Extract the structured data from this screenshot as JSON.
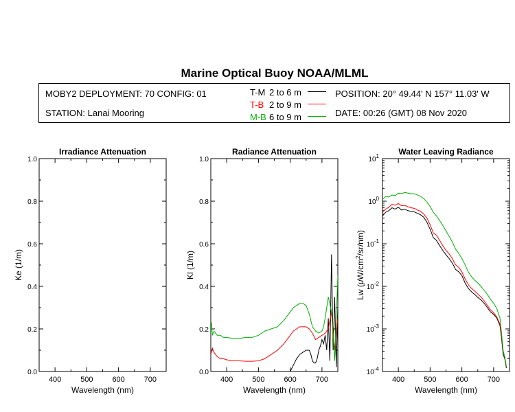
{
  "title": "Marine Optical Buoy NOAA/MLML",
  "info": {
    "deployment": "MOBY2 DEPLOYMENT: 70 CONFIG: 01",
    "station": "STATION: Lanai Mooring",
    "position": "POSITION: 20° 49.44' N   157° 11.03' W",
    "date": "DATE: 00:26 (GMT) 08 Nov 2020"
  },
  "legend": [
    {
      "code": "T-M",
      "range": "2 to 6  m",
      "color": "#000000"
    },
    {
      "code": "T-B",
      "range": "2 to 9  m",
      "color": "#ff0000"
    },
    {
      "code": "M-B",
      "range": "6 to 9  m",
      "color": "#00b000"
    }
  ],
  "chart_data": [
    {
      "type": "line",
      "title": "Irradiance Attenuation",
      "xlabel": "Wavelength (nm)",
      "ylabel": "Ke  (1/m)",
      "xlim": [
        350,
        750
      ],
      "ylim": [
        0,
        1.0
      ],
      "xticks": [
        "400",
        "500",
        "600",
        "700"
      ],
      "yticks": [
        "0.0",
        "0.2",
        "0.4",
        "0.6",
        "0.8",
        "1.0"
      ],
      "series": []
    },
    {
      "type": "line",
      "title": "Radiance Attenuation",
      "xlabel": "Wavelength (nm)",
      "ylabel": "Kl  (1/m)",
      "xlim": [
        350,
        750
      ],
      "ylim": [
        0,
        1.0
      ],
      "xticks": [
        "400",
        "500",
        "600",
        "700"
      ],
      "yticks": [
        "0.0",
        "0.2",
        "0.4",
        "0.6",
        "0.8",
        "1.0"
      ],
      "series": [
        {
          "name": "T-M",
          "color": "#000000",
          "x": [
            600,
            610,
            620,
            630,
            640,
            650,
            660,
            665,
            670,
            675,
            680,
            685,
            690,
            695,
            700,
            705,
            710,
            715,
            720,
            725,
            730,
            735,
            740,
            745,
            750
          ],
          "y": [
            0.0,
            0.03,
            0.06,
            0.08,
            0.09,
            0.1,
            0.1,
            0.08,
            0.05,
            0.04,
            0.04,
            0.06,
            0.1,
            0.12,
            0.15,
            0.13,
            0.17,
            0.1,
            0.25,
            0.05,
            0.55,
            0.1,
            0.35,
            0.02,
            0.3
          ]
        },
        {
          "name": "T-B",
          "color": "#ff0000",
          "x": [
            350,
            355,
            360,
            370,
            380,
            390,
            400,
            420,
            440,
            460,
            480,
            500,
            520,
            540,
            560,
            580,
            590,
            600,
            610,
            620,
            630,
            640,
            650,
            660,
            670,
            680,
            690,
            700,
            710,
            720,
            730,
            740,
            750
          ],
          "y": [
            0.08,
            0.11,
            0.09,
            0.07,
            0.06,
            0.06,
            0.055,
            0.05,
            0.05,
            0.048,
            0.048,
            0.05,
            0.06,
            0.08,
            0.1,
            0.13,
            0.15,
            0.17,
            0.19,
            0.2,
            0.21,
            0.21,
            0.21,
            0.2,
            0.18,
            0.15,
            0.16,
            0.17,
            0.18,
            0.2,
            0.28,
            0.1,
            0.25
          ]
        },
        {
          "name": "M-B",
          "color": "#00b000",
          "x": [
            350,
            352,
            355,
            360,
            370,
            380,
            390,
            400,
            420,
            440,
            460,
            480,
            500,
            520,
            540,
            560,
            580,
            590,
            600,
            610,
            620,
            630,
            640,
            650,
            660,
            670,
            680,
            690,
            700,
            705,
            710,
            720,
            730,
            740,
            750
          ],
          "y": [
            0.18,
            0.23,
            0.17,
            0.19,
            0.17,
            0.17,
            0.16,
            0.16,
            0.155,
            0.155,
            0.16,
            0.16,
            0.17,
            0.19,
            0.2,
            0.21,
            0.24,
            0.26,
            0.28,
            0.3,
            0.31,
            0.32,
            0.32,
            0.31,
            0.27,
            0.21,
            0.19,
            0.18,
            0.19,
            0.21,
            0.25,
            0.35,
            0.28,
            0.05,
            0.45
          ]
        }
      ]
    },
    {
      "type": "line",
      "title": "Water Leaving Radiance",
      "xlabel": "Wavelength (nm)",
      "ylabel_prefix": "Lw  (",
      "ylabel_mu": "μ",
      "ylabel_mid": "W/cm",
      "ylabel_sup": "2",
      "ylabel_suffix": "/sr/nm)",
      "xlim": [
        350,
        750
      ],
      "ylim_log10": [
        -4,
        1
      ],
      "xticks": [
        "400",
        "500",
        "600",
        "700"
      ],
      "yticks": [
        {
          "base": "10",
          "exp": "1",
          "value": 1
        },
        {
          "base": "10",
          "exp": "0",
          "value": 0
        },
        {
          "base": "10",
          "exp": "-1",
          "value": -1
        },
        {
          "base": "10",
          "exp": "-2",
          "value": -2
        },
        {
          "base": "10",
          "exp": "-3",
          "value": -3
        },
        {
          "base": "10",
          "exp": "-4",
          "value": -4
        }
      ],
      "series": [
        {
          "name": "T-M",
          "color": "#000000",
          "x": [
            350,
            360,
            370,
            380,
            390,
            400,
            410,
            420,
            430,
            440,
            450,
            460,
            470,
            480,
            490,
            500,
            510,
            520,
            530,
            540,
            550,
            560,
            570,
            580,
            590,
            600,
            610,
            620,
            630,
            640,
            650,
            660,
            670,
            680,
            690,
            700,
            710,
            720,
            725,
            730,
            735,
            740
          ],
          "y": [
            0.45,
            0.55,
            0.6,
            0.7,
            0.65,
            0.72,
            0.62,
            0.65,
            0.6,
            0.58,
            0.56,
            0.52,
            0.48,
            0.42,
            0.32,
            0.22,
            0.14,
            0.12,
            0.09,
            0.07,
            0.055,
            0.045,
            0.035,
            0.025,
            0.022,
            0.018,
            0.012,
            0.009,
            0.0075,
            0.0065,
            0.0055,
            0.0048,
            0.004,
            0.0032,
            0.0025,
            0.0022,
            0.0018,
            0.0012,
            0.0006,
            0.00025,
            0.0002,
            0.00012
          ]
        },
        {
          "name": "T-B",
          "color": "#ff0000",
          "x": [
            350,
            360,
            370,
            380,
            390,
            400,
            410,
            420,
            430,
            440,
            450,
            460,
            470,
            480,
            490,
            500,
            510,
            520,
            530,
            540,
            550,
            560,
            570,
            580,
            590,
            600,
            610,
            620,
            630,
            640,
            650,
            660,
            670,
            680,
            690,
            700,
            710,
            720,
            725,
            730,
            735,
            740
          ],
          "y": [
            0.55,
            0.65,
            0.72,
            0.85,
            0.8,
            0.88,
            0.78,
            0.8,
            0.74,
            0.7,
            0.68,
            0.62,
            0.58,
            0.5,
            0.4,
            0.28,
            0.18,
            0.16,
            0.12,
            0.09,
            0.07,
            0.058,
            0.045,
            0.032,
            0.028,
            0.022,
            0.015,
            0.011,
            0.009,
            0.0078,
            0.0066,
            0.0056,
            0.0046,
            0.0036,
            0.0028,
            0.0024,
            0.0019,
            0.0013,
            0.0007,
            0.0003,
            0.00022,
            0.00013
          ]
        },
        {
          "name": "M-B",
          "color": "#00b000",
          "x": [
            350,
            360,
            370,
            380,
            390,
            400,
            410,
            420,
            430,
            440,
            450,
            460,
            470,
            480,
            490,
            500,
            510,
            520,
            530,
            540,
            550,
            560,
            570,
            580,
            590,
            600,
            610,
            620,
            630,
            640,
            650,
            660,
            670,
            680,
            690,
            700,
            710,
            720,
            725,
            730,
            735,
            740
          ],
          "y": [
            1.1,
            1.3,
            1.25,
            1.4,
            1.35,
            1.55,
            1.5,
            1.6,
            1.55,
            1.5,
            1.5,
            1.4,
            1.3,
            1.15,
            0.95,
            0.75,
            0.55,
            0.45,
            0.35,
            0.27,
            0.2,
            0.15,
            0.11,
            0.075,
            0.06,
            0.045,
            0.032,
            0.022,
            0.017,
            0.014,
            0.012,
            0.01,
            0.008,
            0.0065,
            0.005,
            0.004,
            0.003,
            0.0018,
            0.0008,
            0.0003,
            0.00022,
            0.00013
          ]
        }
      ]
    }
  ]
}
